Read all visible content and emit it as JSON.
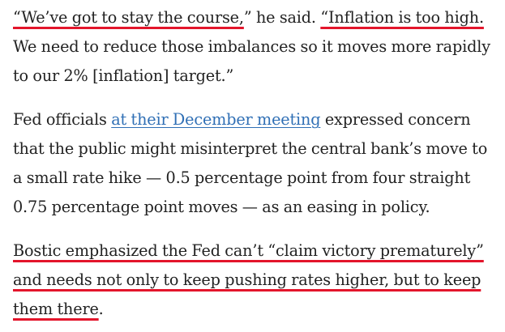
{
  "article": {
    "p1": {
      "highlight_1": "“We’ve got to stay the course,",
      "text_1": "” he said. ",
      "highlight_2": "“Inflation is too high.",
      "text_2": " We need to reduce those imbalances so it moves more rapidly to our 2% [inflation] target.”"
    },
    "p2": {
      "text_1": "Fed officials ",
      "link": "at their December meeting",
      "text_2": " expressed concern that the public might misinterpret the central bank’s move to a small rate hike — 0.5 percentage point from four straight 0.75 percentage point moves — as an easing in policy."
    },
    "p3": {
      "highlight": "Bostic emphasized the Fed can’t “claim victory prematurely” and needs not only to keep pushing rates higher, but to keep them there",
      "text_end": "."
    },
    "colors": {
      "highlight_underline": "#e3152b",
      "link": "#2f6fb5",
      "text": "#222222"
    }
  }
}
